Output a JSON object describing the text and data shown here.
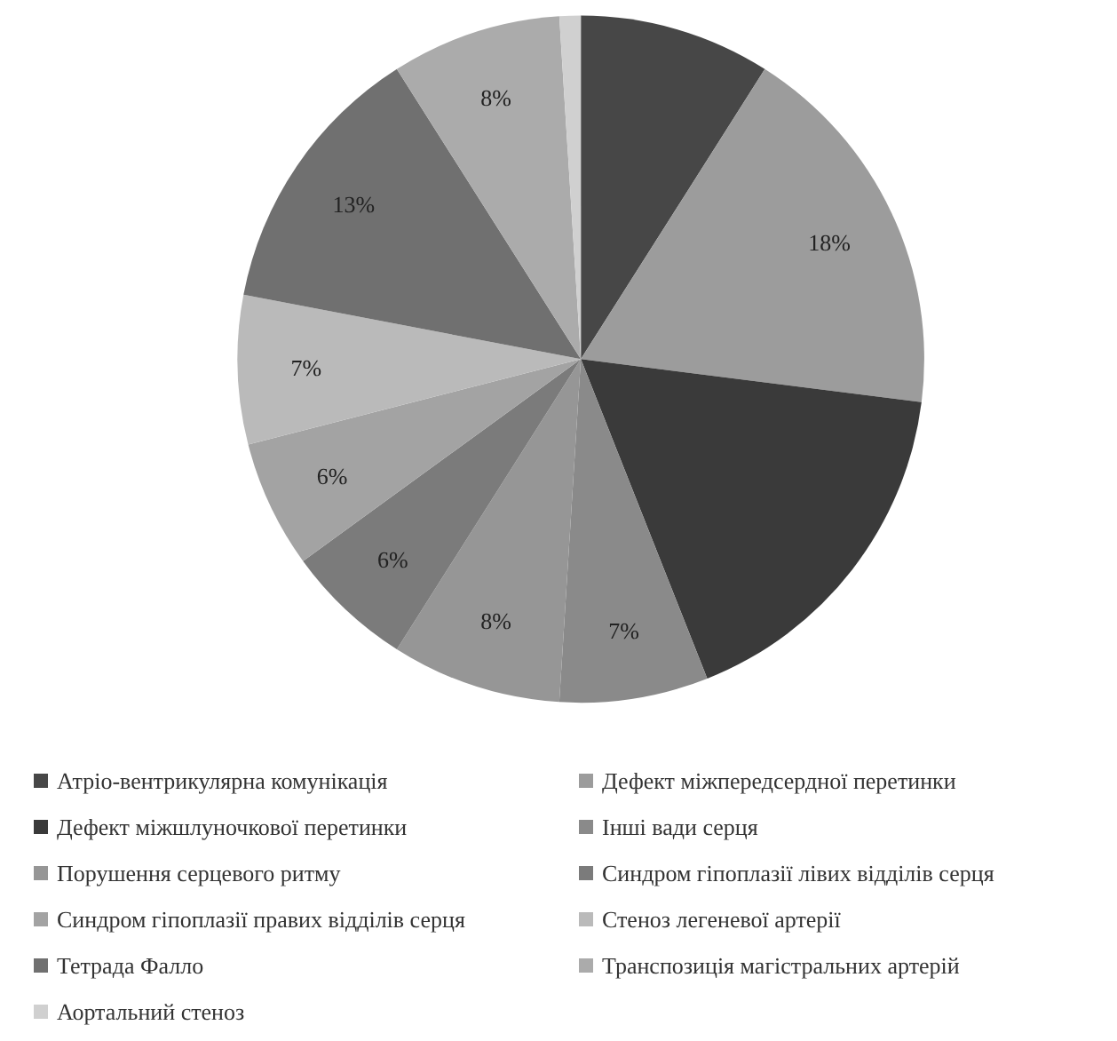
{
  "chart_data": {
    "type": "pie",
    "categories": [
      "Атріо-вентрикулярна комунікація",
      "Дефект міжпередсердної перетинки",
      "Дефект міжшлуночкової перетинки",
      "Інші вади серця",
      "Порушення серцевого ритму",
      "Синдром гіпоплазії лівих відділів серця",
      "Синдром гіпоплазії правих відділів серця",
      "Стеноз легеневої артерії",
      "Тетрада Фалло",
      "Транспозиція магістральних артерій",
      "Аортальний стеноз"
    ],
    "values": [
      9,
      18,
      17,
      7,
      8,
      6,
      6,
      7,
      13,
      8,
      1
    ],
    "value_labels": [
      null,
      "18%",
      null,
      "7%",
      "8%",
      "6%",
      "6%",
      "7%",
      "13%",
      "8%",
      null
    ],
    "colors": [
      "#474747",
      "#9c9c9c",
      "#3a3a3a",
      "#8a8a8a",
      "#969696",
      "#7b7b7b",
      "#a3a3a3",
      "#bababa",
      "#707070",
      "#ababab",
      "#d0d0d0"
    ],
    "legend": "bottom"
  }
}
